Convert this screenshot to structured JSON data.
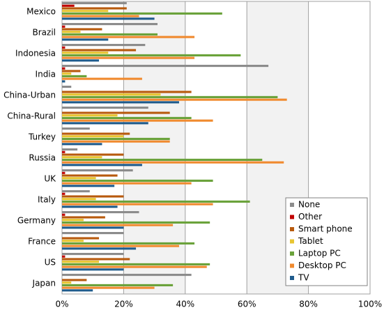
{
  "chart_data": {
    "type": "hbar",
    "categories": [
      "Mexico",
      "Brazil",
      "Indonesia",
      "India",
      "China-Urban",
      "China-Rural",
      "Turkey",
      "Russia",
      "UK",
      "Italy",
      "Germany",
      "France",
      "US",
      "Japan"
    ],
    "series": [
      {
        "name": "None",
        "color": "#8c8c8c",
        "values": [
          21,
          31,
          27,
          67,
          3,
          28,
          9,
          5,
          23,
          9,
          25,
          20,
          20,
          42
        ]
      },
      {
        "name": "Other",
        "color": "#c00000",
        "values": [
          4,
          1,
          1,
          1,
          0,
          0,
          0,
          1,
          1,
          1,
          1,
          0,
          1,
          0
        ]
      },
      {
        "name": "Smart phone",
        "color": "#b85a0d",
        "values": [
          21,
          13,
          24,
          6,
          42,
          35,
          22,
          20,
          18,
          20,
          14,
          12,
          22,
          8
        ]
      },
      {
        "name": "Tablet",
        "color": "#e8c531",
        "values": [
          15,
          6,
          15,
          3,
          32,
          18,
          20,
          13,
          11,
          11,
          7,
          7,
          12,
          3
        ]
      },
      {
        "name": "Laptop PC",
        "color": "#6aa23a",
        "values": [
          52,
          31,
          58,
          8,
          70,
          42,
          35,
          65,
          49,
          61,
          48,
          43,
          48,
          36
        ]
      },
      {
        "name": "Desktop PC",
        "color": "#f08a2e",
        "values": [
          25,
          43,
          43,
          26,
          73,
          49,
          35,
          72,
          42,
          49,
          36,
          38,
          47,
          30
        ]
      },
      {
        "name": "TV",
        "color": "#1f5b8c",
        "values": [
          30,
          15,
          12,
          1,
          38,
          28,
          13,
          26,
          17,
          18,
          20,
          24,
          20,
          10
        ]
      }
    ],
    "xlim": [
      0,
      100
    ],
    "xticks": [
      {
        "value": 0,
        "label": "0%"
      },
      {
        "value": 20,
        "label": "20%"
      },
      {
        "value": 40,
        "label": "40%"
      },
      {
        "value": 60,
        "label": "60%"
      },
      {
        "value": 80,
        "label": "80%"
      },
      {
        "value": 100,
        "label": "100%"
      }
    ],
    "grid": true,
    "legend": "lower right"
  }
}
